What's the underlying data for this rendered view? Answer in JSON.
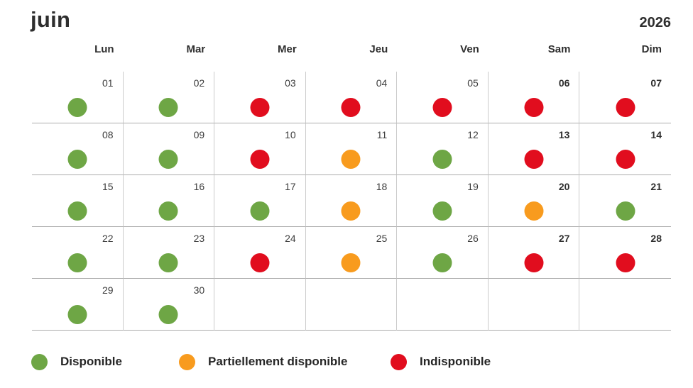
{
  "header": {
    "month": "juin",
    "year": "2026"
  },
  "weekdays": [
    "Lun",
    "Mar",
    "Mer",
    "Jeu",
    "Ven",
    "Sam",
    "Dim"
  ],
  "colors": {
    "available": "#6EA645",
    "partial": "#F89B1E",
    "unavailable": "#E10D1E"
  },
  "calendar": {
    "weeks": [
      [
        {
          "day": "01",
          "status": "available"
        },
        {
          "day": "02",
          "status": "available"
        },
        {
          "day": "03",
          "status": "unavailable"
        },
        {
          "day": "04",
          "status": "unavailable"
        },
        {
          "day": "05",
          "status": "unavailable"
        },
        {
          "day": "06",
          "status": "unavailable"
        },
        {
          "day": "07",
          "status": "unavailable"
        }
      ],
      [
        {
          "day": "08",
          "status": "available"
        },
        {
          "day": "09",
          "status": "available"
        },
        {
          "day": "10",
          "status": "unavailable"
        },
        {
          "day": "11",
          "status": "partial"
        },
        {
          "day": "12",
          "status": "available"
        },
        {
          "day": "13",
          "status": "unavailable"
        },
        {
          "day": "14",
          "status": "unavailable"
        }
      ],
      [
        {
          "day": "15",
          "status": "available"
        },
        {
          "day": "16",
          "status": "available"
        },
        {
          "day": "17",
          "status": "available"
        },
        {
          "day": "18",
          "status": "partial"
        },
        {
          "day": "19",
          "status": "available"
        },
        {
          "day": "20",
          "status": "partial"
        },
        {
          "day": "21",
          "status": "available"
        }
      ],
      [
        {
          "day": "22",
          "status": "available"
        },
        {
          "day": "23",
          "status": "available"
        },
        {
          "day": "24",
          "status": "unavailable"
        },
        {
          "day": "25",
          "status": "partial"
        },
        {
          "day": "26",
          "status": "available"
        },
        {
          "day": "27",
          "status": "unavailable"
        },
        {
          "day": "28",
          "status": "unavailable"
        }
      ],
      [
        {
          "day": "29",
          "status": "available"
        },
        {
          "day": "30",
          "status": "available"
        },
        {
          "day": "",
          "status": "none"
        },
        {
          "day": "",
          "status": "none"
        },
        {
          "day": "",
          "status": "none"
        },
        {
          "day": "",
          "status": "none"
        },
        {
          "day": "",
          "status": "none"
        }
      ]
    ]
  },
  "legend": [
    {
      "label": "Disponible",
      "status": "available"
    },
    {
      "label": "Partiellement disponible",
      "status": "partial"
    },
    {
      "label": "Indisponible",
      "status": "unavailable"
    }
  ]
}
